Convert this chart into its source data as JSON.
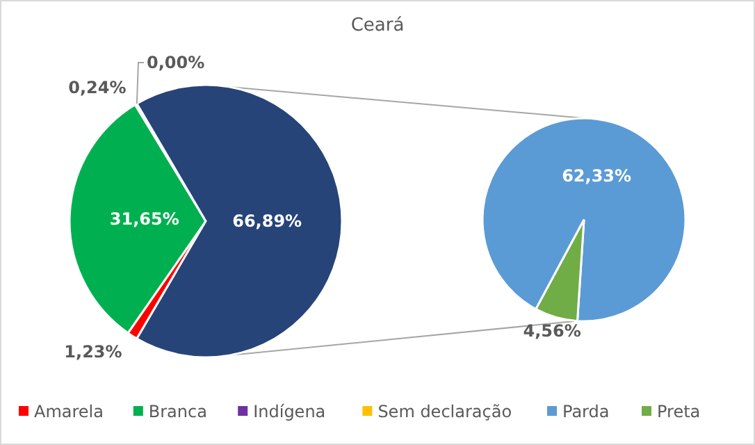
{
  "chart_data": [
    {
      "type": "pie",
      "title": "Ceará",
      "categories": [
        "Amarela",
        "Branca",
        "Indígena",
        "Sem declaração",
        null
      ],
      "values": [
        1.23,
        31.65,
        0.24,
        0.0,
        66.89
      ],
      "colors": [
        "#ff0000",
        "#00b050",
        "#7030a0",
        "#ffc000",
        "#264478"
      ],
      "value_labels": [
        "1,23%",
        "31,65%",
        "0,24%",
        "0,00%",
        "66,89%"
      ],
      "legend": "bottom"
    },
    {
      "type": "pie",
      "categories": [
        "Parda",
        "Preta"
      ],
      "values": [
        62.33,
        4.56
      ],
      "colors": [
        "#5b9bd5",
        "#70ad47"
      ],
      "value_labels": [
        "62,33%",
        "4,56%"
      ],
      "legend": "bottom"
    }
  ]
}
